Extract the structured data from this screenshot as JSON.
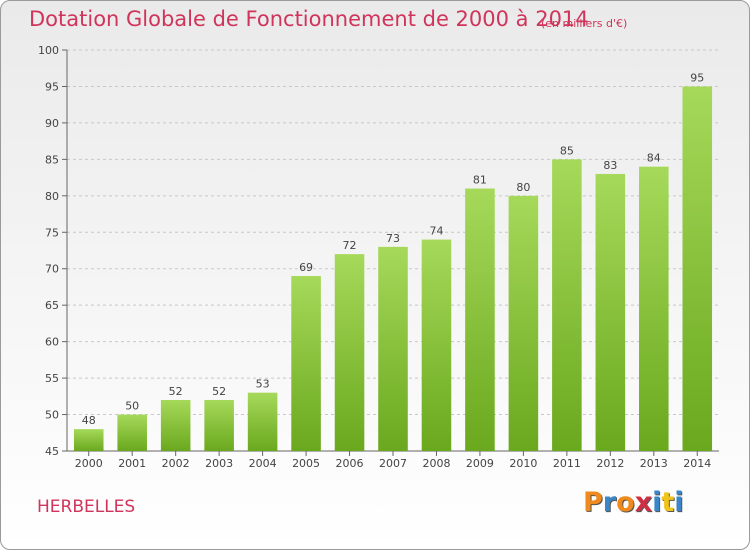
{
  "title": "Dotation Globale de Fonctionnement de 2000 à 2014",
  "subtitle": "(en milliers d'€)",
  "commune": "HERBELLES",
  "brand": {
    "letters": [
      "P",
      "r",
      "o",
      "x",
      "i",
      "t",
      "i"
    ],
    "colors": [
      "#f08a1c",
      "#3a86c8",
      "#f08a1c",
      "#cf2f43",
      "#3a86c8",
      "#f0c419",
      "#3a86c8"
    ]
  },
  "colors": {
    "bar_light": "#a6d95a",
    "bar_dark": "#6aa81e",
    "title": "#d0345b",
    "grid": "#c8c8c8"
  },
  "chart_data": {
    "type": "bar",
    "title": "Dotation Globale de Fonctionnement de 2000 à 2014",
    "subtitle": "(en milliers d'€)",
    "categories": [
      "2000",
      "2001",
      "2002",
      "2003",
      "2004",
      "2005",
      "2006",
      "2007",
      "2008",
      "2009",
      "2010",
      "2011",
      "2012",
      "2013",
      "2014"
    ],
    "values": [
      48,
      50,
      52,
      52,
      53,
      69,
      72,
      73,
      74,
      81,
      80,
      85,
      83,
      84,
      95
    ],
    "ylim": [
      45,
      100
    ],
    "yticks": [
      45,
      50,
      55,
      60,
      65,
      70,
      75,
      80,
      85,
      90,
      95,
      100
    ],
    "grid": "horizontal dashed",
    "data_labels": true
  }
}
